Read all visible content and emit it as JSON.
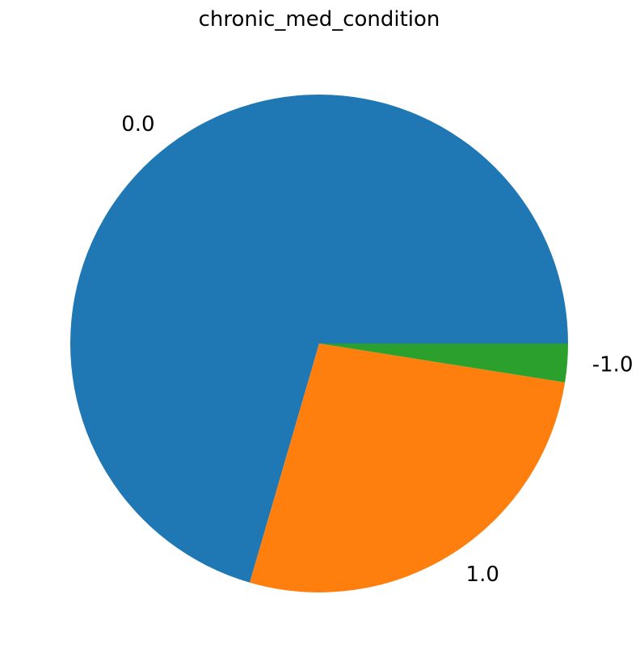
{
  "chart_data": {
    "type": "pie",
    "title": "chronic_med_condition",
    "categories": [
      "0.0",
      "1.0",
      "-1.0"
    ],
    "values": [
      70.5,
      27.0,
      2.5
    ],
    "colors": [
      "#1f77b4",
      "#ff7f0e",
      "#2ca02c"
    ],
    "start_angle_deg": 0,
    "direction": "counterclockwise"
  }
}
